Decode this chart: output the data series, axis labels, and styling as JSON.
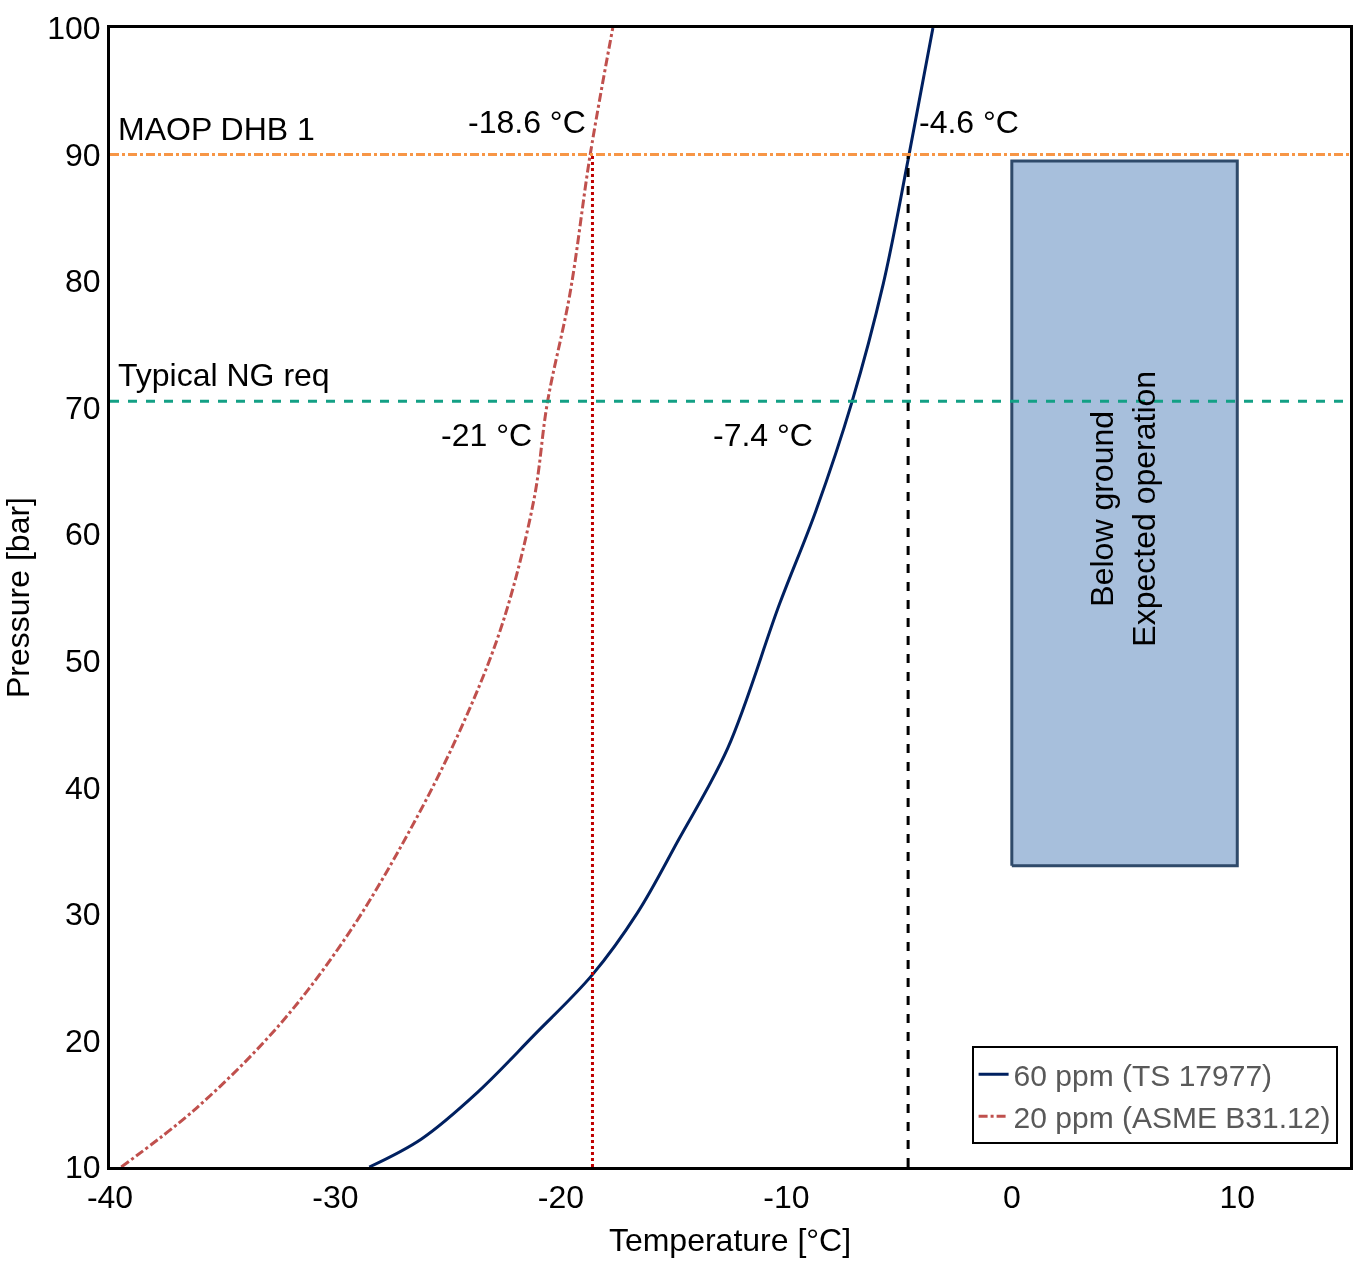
{
  "chart_data": {
    "type": "line",
    "xlabel": "Temperature [°C]",
    "ylabel": "Pressure [bar]",
    "xlim": [
      -40,
      15
    ],
    "ylim": [
      10,
      100
    ],
    "xticks": [
      -40,
      -30,
      -20,
      -10,
      0,
      10
    ],
    "yticks": [
      10,
      20,
      30,
      40,
      50,
      60,
      70,
      80,
      90,
      100
    ],
    "legend": "bottom right",
    "marker": "none",
    "series": [
      {
        "name": "60 ppm (TS 17977)",
        "color": "#002060",
        "line_style": "solid",
        "x": [
          -28.5,
          -26.2,
          -23.7,
          -21.2,
          -18.6,
          -16.6,
          -14.8,
          -12.6,
          -10.3,
          -8.7,
          -7.1,
          -5.7,
          -4.6,
          -3.5
        ],
        "values": [
          10,
          12.2,
          15.9,
          20.4,
          25.2,
          30.1,
          35.8,
          43.1,
          54.5,
          61.8,
          70.4,
          79.8,
          89.6,
          100
        ]
      },
      {
        "name": "20 ppm (ASME B31.12)",
        "color": "#c0504d",
        "line_style": "dashdot",
        "x": [
          -39.5,
          -36.2,
          -32.5,
          -29.4,
          -26.7,
          -24.4,
          -22.6,
          -21.2,
          -20.6,
          -19.6,
          -18.7,
          -17.7
        ],
        "values": [
          10,
          14.6,
          21.2,
          28.5,
          36.6,
          44.8,
          52.9,
          62.7,
          70.4,
          79,
          90,
          100
        ]
      },
      {
        "color": "#c00000",
        "line_style": "dotted",
        "x": [
          -18.6,
          -18.6
        ],
        "values": [
          10,
          90
        ]
      },
      {
        "color": "#000000",
        "line_style": "dashed",
        "x": [
          -4.6,
          -4.6
        ],
        "values": [
          10,
          90
        ]
      },
      {
        "type": "area",
        "color": "#a7bfdc",
        "x": [
          0,
          10,
          10,
          0,
          0
        ],
        "values": [
          33.8,
          33.8,
          89.5,
          89.5,
          33.8
        ]
      }
    ],
    "ref_lines": [
      {
        "axis": "y",
        "value": 90,
        "label": "MAOP DHB 1",
        "color": "#f79646",
        "line_style": "dashdot"
      },
      {
        "axis": "y",
        "value": 70.5,
        "label": "Typical NG req",
        "color": "#13a085",
        "line_style": "dashed"
      }
    ],
    "annotations": [
      "-18.6 °C",
      "-4.6 °C",
      "-21 °C",
      "-7.4 °C",
      "Below ground\nExpected operation"
    ]
  }
}
